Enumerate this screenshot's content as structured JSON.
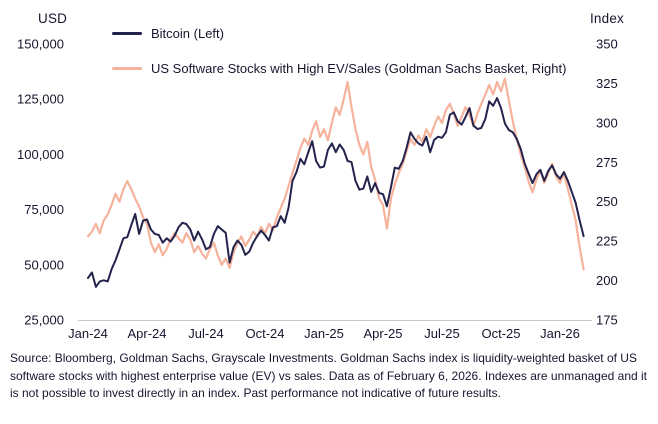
{
  "footer": {
    "source_text": "Source: Bloomberg, Goldman Sachs, Grayscale Investments. Goldman Sachs index is liquidity-weighted basket of US software stocks with highest enterprise value (EV) vs sales. Data as of February 6, 2026. Indexes are unmanaged and it is not possible to invest directly in an index. Past performance not indicative of future results."
  },
  "chart_data": {
    "type": "line",
    "title": "",
    "grid": false,
    "legend_position": "top-left",
    "text_color": "#16162e",
    "axis_line_color": "#c8c8c8",
    "x_unit": "months since Jan-2024",
    "x_range": [
      0,
      25.2
    ],
    "x_ticks": [
      {
        "m": 0,
        "label": "Jan-24"
      },
      {
        "m": 3,
        "label": "Apr-24"
      },
      {
        "m": 6,
        "label": "Jul-24"
      },
      {
        "m": 9,
        "label": "Oct-24"
      },
      {
        "m": 12,
        "label": "Jan-25"
      },
      {
        "m": 15,
        "label": "Apr-25"
      },
      {
        "m": 18,
        "label": "Jul-25"
      },
      {
        "m": 21,
        "label": "Oct-25"
      },
      {
        "m": 24,
        "label": "Jan-26"
      }
    ],
    "left_axis": {
      "title": "USD",
      "min": 25000,
      "max": 150000,
      "ticks": [
        {
          "v": 150000,
          "label": "150,000"
        },
        {
          "v": 125000,
          "label": "125,000"
        },
        {
          "v": 100000,
          "label": "100,000"
        },
        {
          "v": 75000,
          "label": "75,000"
        },
        {
          "v": 50000,
          "label": "50,000"
        },
        {
          "v": 25000,
          "label": "25,000"
        }
      ]
    },
    "right_axis": {
      "title": "Index",
      "min": 175,
      "max": 350,
      "ticks": [
        {
          "v": 350,
          "label": "350"
        },
        {
          "v": 325,
          "label": "325"
        },
        {
          "v": 300,
          "label": "300"
        },
        {
          "v": 275,
          "label": "275"
        },
        {
          "v": 250,
          "label": "250"
        },
        {
          "v": 225,
          "label": "225"
        },
        {
          "v": 200,
          "label": "200"
        },
        {
          "v": 175,
          "label": "175"
        }
      ]
    },
    "series": [
      {
        "name": "Bitcoin (Left)",
        "axis": "left",
        "color": "#23234d",
        "stroke_width": 2,
        "x_start": 0,
        "x_step": 0.2,
        "values": [
          44000,
          46500,
          40000,
          42500,
          43000,
          42500,
          48000,
          52000,
          57000,
          62000,
          62500,
          68000,
          73000,
          64000,
          70000,
          70500,
          66000,
          64000,
          63500,
          60000,
          62000,
          60500,
          63000,
          67000,
          69000,
          68500,
          66000,
          61000,
          65000,
          61500,
          57000,
          58000,
          64000,
          67500,
          66000,
          64500,
          51000,
          58000,
          61000,
          59000,
          54500,
          56000,
          60000,
          63000,
          65500,
          63500,
          61000,
          67000,
          67500,
          72000,
          69000,
          76000,
          88000,
          92000,
          98000,
          95500,
          101000,
          106000,
          97000,
          94000,
          94500,
          102000,
          105000,
          101000,
          104500,
          102000,
          97000,
          96500,
          88000,
          84000,
          84500,
          90000,
          83000,
          87000,
          82500,
          82000,
          76500,
          85000,
          94000,
          93500,
          97000,
          103000,
          110000,
          107000,
          105000,
          104000,
          108000,
          101000,
          106500,
          108000,
          107500,
          110000,
          118000,
          119000,
          115000,
          113500,
          117000,
          121000,
          113000,
          111500,
          112000,
          116000,
          124000,
          122000,
          125500,
          121000,
          114000,
          111000,
          110000,
          107000,
          102500,
          96000,
          91500,
          87000,
          91000,
          93000,
          88000,
          92500,
          95000,
          91000,
          89000,
          92000,
          88000,
          83000,
          78000,
          70000,
          63000
        ]
      },
      {
        "name": "US Software Stocks with High EV/Sales (Goldman Sachs Basket, Right)",
        "axis": "right",
        "color": "#f6b39c",
        "stroke_width": 2.2,
        "x_start": 0,
        "x_step": 0.2,
        "values": [
          228,
          231,
          236,
          230,
          238,
          242,
          248,
          255,
          250,
          258,
          263,
          258,
          252,
          247,
          240,
          236,
          224,
          218,
          223,
          216,
          220,
          226,
          230,
          227,
          224,
          230,
          226,
          218,
          222,
          217,
          214,
          220,
          224,
          216,
          210,
          214,
          208,
          218,
          224,
          228,
          222,
          226,
          231,
          228,
          234,
          230,
          236,
          232,
          240,
          246,
          252,
          260,
          268,
          276,
          284,
          290,
          286,
          295,
          301,
          291,
          296,
          289,
          300,
          310,
          305,
          315,
          326,
          310,
          296,
          286,
          280,
          288,
          272,
          264,
          252,
          248,
          233,
          252,
          261,
          268,
          274,
          282,
          290,
          286,
          292,
          288,
          296,
          291,
          298,
          304,
          300,
          308,
          312,
          306,
          298,
          304,
          310,
          305,
          298,
          306,
          312,
          318,
          324,
          318,
          326,
          320,
          328,
          314,
          301,
          290,
          280,
          272,
          263,
          256,
          264,
          270,
          262,
          268,
          274,
          266,
          262,
          268,
          258,
          248,
          238,
          221,
          207
        ]
      }
    ]
  }
}
